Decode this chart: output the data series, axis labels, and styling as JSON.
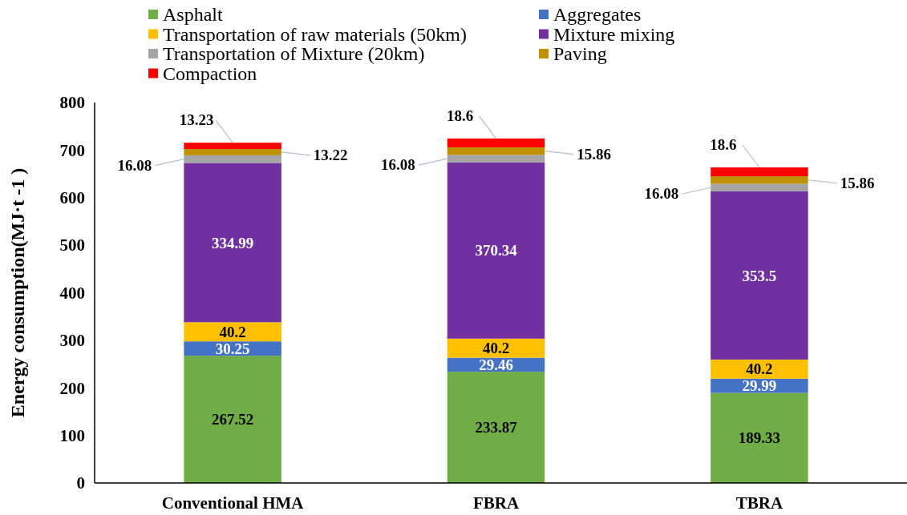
{
  "chart_data": {
    "type": "bar",
    "stacked": true,
    "ylabel": "Energy consumption(MJ·t -1 )",
    "categories": [
      "Conventional HMA",
      "FBRA",
      "TBRA"
    ],
    "series": [
      {
        "name": "Asphalt",
        "color": "#70ad47",
        "values": [
          267.52,
          233.87,
          189.33
        ]
      },
      {
        "name": "Aggregates",
        "color": "#4472c4",
        "values": [
          30.25,
          29.46,
          29.99
        ]
      },
      {
        "name": "Transportation of raw materials (50km)",
        "color": "#ffc000",
        "values": [
          40.2,
          40.2,
          40.2
        ]
      },
      {
        "name": "Mixture mixing",
        "color": "#7030a0",
        "values": [
          334.99,
          370.34,
          353.5
        ]
      },
      {
        "name": "Transportation of Mixture (20km)",
        "color": "#a5a5a5",
        "values": [
          16.08,
          16.08,
          16.08
        ]
      },
      {
        "name": "Paving",
        "color": "#bf9000",
        "values": [
          13.22,
          15.86,
          15.86
        ]
      },
      {
        "name": "Compaction",
        "color": "#ff0000",
        "values": [
          13.23,
          18.6,
          18.6
        ]
      }
    ],
    "ylim": [
      0,
      800
    ],
    "yticks": [
      0,
      100,
      200,
      300,
      400,
      500,
      600,
      700,
      800
    ],
    "data_labels": true,
    "legend": "top",
    "grid": false
  }
}
